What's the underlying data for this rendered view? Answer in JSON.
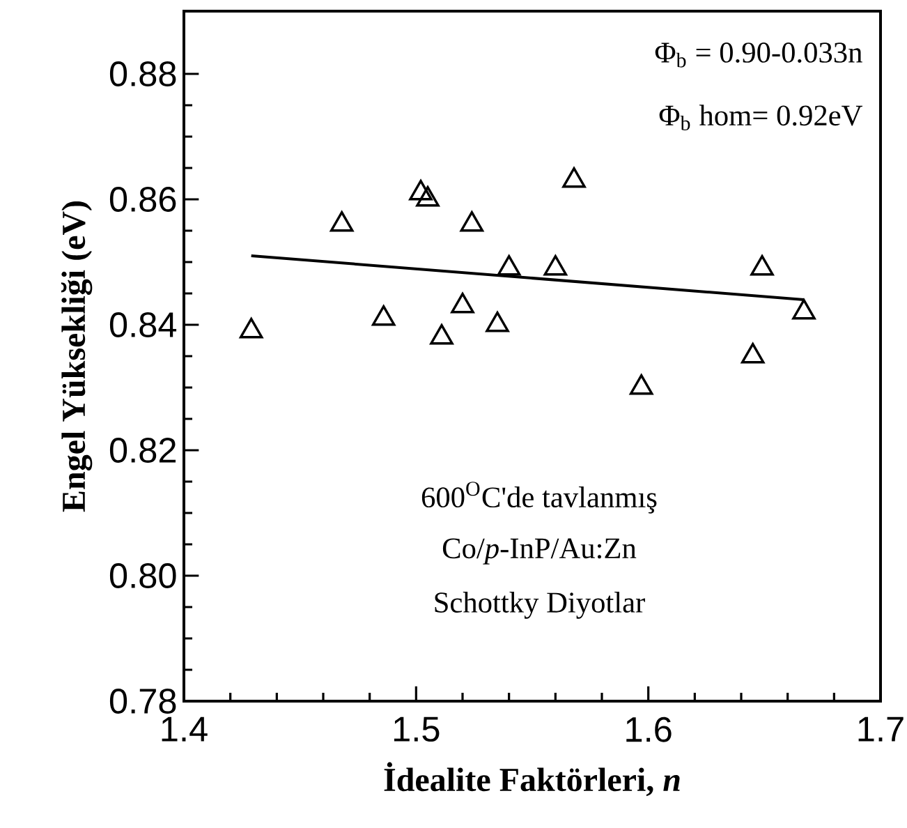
{
  "chart_data": {
    "type": "scatter",
    "xlabel": "İdealite Faktörleri, *n*",
    "ylabel": "Engel Yüksekliği (eV)",
    "annotations": [
      "Φ$_{b}$ = 0.90-0.033n",
      "Φ$_{b}$ hom= 0.92eV",
      "600$^{O}$C'de tavlanmış",
      "Co/*p*-InP/Au:Zn",
      "Schottky Diyotlar"
    ],
    "xlim": [
      1.4,
      1.7
    ],
    "ylim": [
      0.78,
      0.89
    ],
    "xticks": [
      1.4,
      1.5,
      1.6,
      1.7
    ],
    "yticks": [
      0.78,
      {
        "value": 0.8,
        "label": "0.80"
      },
      0.82,
      0.84,
      0.86,
      0.88
    ],
    "grid": false,
    "series": [
      {
        "marker": "triangle",
        "color": "#000000",
        "x": [
          1.429,
          1.468,
          1.486,
          1.502,
          1.505,
          1.511,
          1.524,
          1.52,
          1.535,
          1.54,
          1.56,
          1.568,
          1.597,
          1.645,
          1.649,
          1.667
        ],
        "values": [
          0.839,
          0.856,
          0.841,
          0.861,
          0.86,
          0.838,
          0.856,
          0.843,
          0.84,
          0.849,
          0.849,
          0.863,
          0.83,
          0.835,
          0.849,
          0.842
        ]
      },
      {
        "type": "line",
        "color": "#000000",
        "x": [
          1.429,
          1.667
        ],
        "values": [
          0.851,
          0.844
        ]
      }
    ]
  }
}
